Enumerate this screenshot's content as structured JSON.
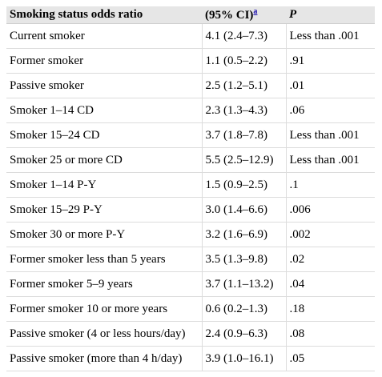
{
  "header": {
    "col1": "Smoking status odds ratio",
    "col2": "(95% CI)",
    "col2_sup": "a",
    "col3": "P"
  },
  "rows": [
    {
      "status": "Current smoker",
      "ci": "4.1 (2.4–7.3)",
      "p": "Less than .001"
    },
    {
      "status": "Former smoker",
      "ci": "1.1 (0.5–2.2)",
      "p": ".91"
    },
    {
      "status": "Passive smoker",
      "ci": "2.5 (1.2–5.1)",
      "p": ".01"
    },
    {
      "status": "Smoker 1–14 CD",
      "ci": "2.3 (1.3–4.3)",
      "p": ".06"
    },
    {
      "status": "Smoker 15–24 CD",
      "ci": "3.7 (1.8–7.8)",
      "p": "Less than .001"
    },
    {
      "status": "Smoker 25 or more CD",
      "ci": "5.5 (2.5–12.9)",
      "p": "Less than .001"
    },
    {
      "status": "Smoker 1–14 P-Y",
      "ci": "1.5 (0.9–2.5)",
      "p": ".1"
    },
    {
      "status": "Smoker 15–29 P-Y",
      "ci": "3.0 (1.4–6.6)",
      "p": ".006"
    },
    {
      "status": "Smoker 30 or more P-Y",
      "ci": "3.2 (1.6–6.9)",
      "p": ".002"
    },
    {
      "status": "Former smoker less than 5 years",
      "ci": "3.5 (1.3–9.8)",
      "p": ".02"
    },
    {
      "status": "Former smoker 5–9 years",
      "ci": "3.7 (1.1–13.2)",
      "p": ".04"
    },
    {
      "status": "Former smoker 10 or more years",
      "ci": "0.6 (0.2–1.3)",
      "p": ".18"
    },
    {
      "status": "Passive smoker (4 or less hours/day)",
      "ci": "2.4 (0.9–6.3)",
      "p": ".08"
    },
    {
      "status": "Passive smoker (more than 4 h/day)",
      "ci": "3.9 (1.0–16.1)",
      "p": ".05"
    }
  ]
}
